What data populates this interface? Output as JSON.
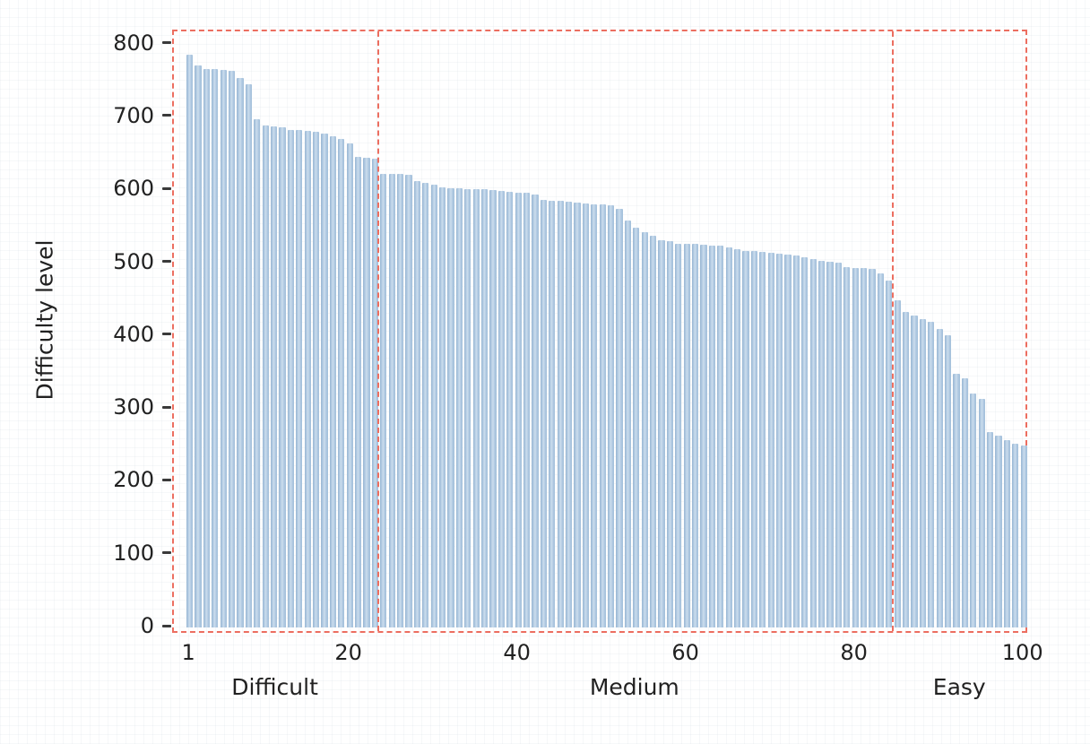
{
  "figure": {
    "y_axis_title": "Difficulty level",
    "colors": {
      "background": "#ffffff",
      "bar_fill": "#a3c0dc",
      "bar_highlight": "#cddeed",
      "bar_edge": "#98b6d3",
      "region_box_red": "#ec6e60",
      "text": "#212121",
      "tick_mark": "#3a3a3a"
    }
  },
  "chart_data": {
    "type": "bar",
    "title": "",
    "xlabel": "",
    "ylabel": "Difficulty level",
    "ylim": [
      0,
      800
    ],
    "xlim_bars": [
      1,
      100
    ],
    "grid": false,
    "legend": null,
    "y_ticks": [
      0,
      100,
      200,
      300,
      400,
      500,
      600,
      700,
      800
    ],
    "y_tick_labels": [
      "0",
      "100",
      "200",
      "300",
      "400",
      "500",
      "600",
      "700",
      "800"
    ],
    "x_ticks": [
      1,
      20,
      40,
      60,
      80,
      100
    ],
    "x_tick_labels": [
      "1",
      "20",
      "40",
      "60",
      "80",
      "100"
    ],
    "bar_count": 100,
    "values": [
      786,
      771,
      766,
      766,
      765,
      764,
      754,
      746,
      697,
      689,
      687,
      686,
      683,
      683,
      682,
      680,
      678,
      674,
      670,
      664,
      646,
      645,
      643,
      623,
      623,
      622,
      621,
      613,
      610,
      608,
      604,
      603,
      603,
      602,
      602,
      601,
      600,
      599,
      598,
      597,
      596,
      594,
      587,
      586,
      585,
      584,
      583,
      582,
      581,
      580,
      579,
      574,
      559,
      548,
      543,
      537,
      531,
      530,
      527,
      526,
      526,
      525,
      524,
      524,
      522,
      519,
      517,
      516,
      515,
      514,
      513,
      512,
      511,
      508,
      506,
      503,
      502,
      501,
      494,
      493,
      493,
      492,
      486,
      476,
      449,
      433,
      428,
      423,
      420,
      410,
      401,
      348,
      342,
      321,
      314,
      268,
      263,
      257,
      252,
      250
    ],
    "regions": [
      {
        "label": "Difficult",
        "start_bar": 1,
        "end_bar": 23
      },
      {
        "label": "Medium",
        "start_bar": 24,
        "end_bar": 84
      },
      {
        "label": "Easy",
        "start_bar": 85,
        "end_bar": 100
      }
    ]
  }
}
